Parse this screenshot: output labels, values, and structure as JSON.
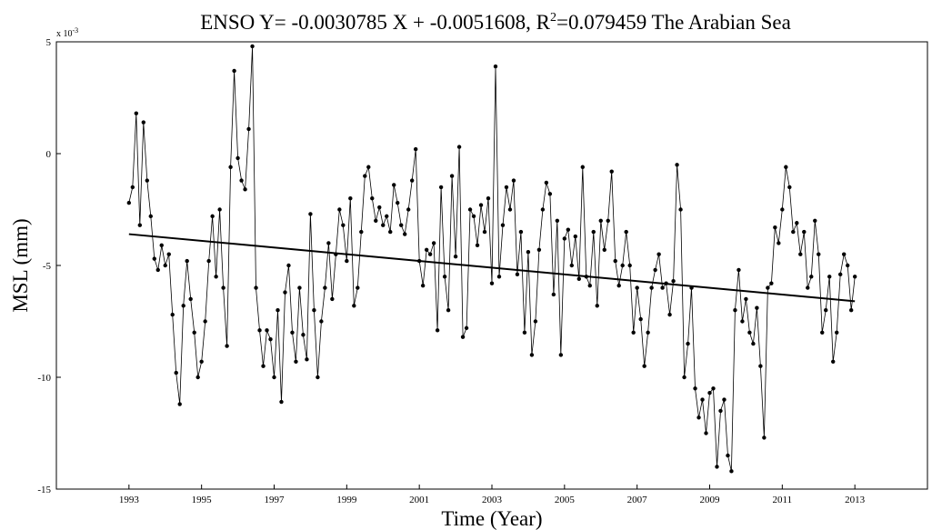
{
  "chart_data": {
    "type": "line",
    "title": "ENSO Y= -0.0030785 X + -0.0051608, R",
    "title_sup": "2",
    "title_suffix": "=0.079459 The Arabian Sea",
    "xlabel": "Time (Year)",
    "ylabel": "MSL (mm)",
    "y_multiplier": "x 10",
    "y_multiplier_exp": "-3",
    "xlim": [
      1991,
      2015
    ],
    "ylim": [
      -15,
      5
    ],
    "xticks": [
      1993,
      1995,
      1997,
      1999,
      2001,
      2003,
      2005,
      2007,
      2009,
      2011,
      2013
    ],
    "yticks": [
      -15,
      -10,
      -5,
      0,
      5
    ],
    "grid": false,
    "series": [
      {
        "style": "line-with-dot-markers",
        "color": "#000000",
        "x": [
          1993.0,
          1993.1,
          1993.2,
          1993.3,
          1993.4,
          1993.5,
          1993.6,
          1993.7,
          1993.8,
          1993.9,
          1994.0,
          1994.1,
          1994.2,
          1994.3,
          1994.4,
          1994.5,
          1994.6,
          1994.7,
          1994.8,
          1994.9,
          1995.0,
          1995.1,
          1995.2,
          1995.3,
          1995.4,
          1995.5,
          1995.6,
          1995.7,
          1995.8,
          1995.9,
          1996.0,
          1996.1,
          1996.2,
          1996.3,
          1996.4,
          1996.5,
          1996.6,
          1996.7,
          1996.8,
          1996.9,
          1997.0,
          1997.1,
          1997.2,
          1997.3,
          1997.4,
          1997.5,
          1997.6,
          1997.7,
          1997.8,
          1997.9,
          1998.0,
          1998.1,
          1998.2,
          1998.3,
          1998.4,
          1998.5,
          1998.6,
          1998.7,
          1998.8,
          1998.9,
          1999.0,
          1999.1,
          1999.2,
          1999.3,
          1999.4,
          1999.5,
          1999.6,
          1999.7,
          1999.8,
          1999.9,
          2000.0,
          2000.1,
          2000.2,
          2000.3,
          2000.4,
          2000.5,
          2000.6,
          2000.7,
          2000.8,
          2000.9,
          2001.0,
          2001.1,
          2001.2,
          2001.3,
          2001.4,
          2001.5,
          2001.6,
          2001.7,
          2001.8,
          2001.9,
          2002.0,
          2002.1,
          2002.2,
          2002.3,
          2002.4,
          2002.5,
          2002.6,
          2002.7,
          2002.8,
          2002.9,
          2003.0,
          2003.1,
          2003.2,
          2003.3,
          2003.4,
          2003.5,
          2003.6,
          2003.7,
          2003.8,
          2003.9,
          2004.0,
          2004.1,
          2004.2,
          2004.3,
          2004.4,
          2004.5,
          2004.6,
          2004.7,
          2004.8,
          2004.9,
          2005.0,
          2005.1,
          2005.2,
          2005.3,
          2005.4,
          2005.5,
          2005.6,
          2005.7,
          2005.8,
          2005.9,
          2006.0,
          2006.1,
          2006.2,
          2006.3,
          2006.4,
          2006.5,
          2006.6,
          2006.7,
          2006.8,
          2006.9,
          2007.0,
          2007.1,
          2007.2,
          2007.3,
          2007.4,
          2007.5,
          2007.6,
          2007.7,
          2007.8,
          2007.9,
          2008.0,
          2008.1,
          2008.2,
          2008.3,
          2008.4,
          2008.5,
          2008.6,
          2008.7,
          2008.8,
          2008.9,
          2009.0,
          2009.1,
          2009.2,
          2009.3,
          2009.4,
          2009.5,
          2009.6,
          2009.7,
          2009.8,
          2009.9,
          2010.0,
          2010.1,
          2010.2,
          2010.3,
          2010.4,
          2010.5,
          2010.6,
          2010.7,
          2010.8,
          2010.9,
          2011.0,
          2011.1,
          2011.2,
          2011.3,
          2011.4,
          2011.5,
          2011.6,
          2011.7,
          2011.8,
          2011.9,
          2012.0,
          2012.1,
          2012.2,
          2012.3,
          2012.4,
          2012.5,
          2012.6,
          2012.7,
          2012.8,
          2012.9,
          2013.0
        ],
        "y": [
          -2.2,
          -1.5,
          1.8,
          -3.2,
          1.4,
          -1.2,
          -2.8,
          -4.7,
          -5.2,
          -4.1,
          -5.0,
          -4.5,
          -7.2,
          -9.8,
          -11.2,
          -6.8,
          -4.8,
          -6.5,
          -8.0,
          -10.0,
          -9.3,
          -7.5,
          -4.8,
          -2.8,
          -5.5,
          -2.5,
          -6.0,
          -8.6,
          -0.6,
          3.7,
          -0.2,
          -1.2,
          -1.6,
          1.1,
          4.8,
          -6.0,
          -7.9,
          -9.5,
          -7.9,
          -8.3,
          -10.0,
          -7.0,
          -11.1,
          -6.2,
          -5.0,
          -8.0,
          -9.3,
          -6.0,
          -8.1,
          -9.2,
          -2.7,
          -7.0,
          -10.0,
          -7.5,
          -6.0,
          -4.0,
          -6.5,
          -4.5,
          -2.5,
          -3.2,
          -4.8,
          -2.0,
          -6.8,
          -6.0,
          -3.5,
          -1.0,
          -0.6,
          -2.0,
          -3.0,
          -2.4,
          -3.2,
          -2.8,
          -3.5,
          -1.4,
          -2.2,
          -3.2,
          -3.6,
          -2.5,
          -1.2,
          0.2,
          -4.8,
          -5.9,
          -4.3,
          -4.5,
          -4.0,
          -7.9,
          -1.5,
          -5.5,
          -7.0,
          -1.0,
          -4.6,
          0.3,
          -8.2,
          -7.8,
          -2.5,
          -2.8,
          -4.1,
          -2.3,
          -3.5,
          -2.0,
          -5.8,
          3.9,
          -5.5,
          -3.2,
          -1.5,
          -2.5,
          -1.2,
          -5.4,
          -3.5,
          -8.0,
          -4.4,
          -9.0,
          -7.5,
          -4.3,
          -2.5,
          -1.3,
          -1.8,
          -6.3,
          -3.0,
          -9.0,
          -3.8,
          -3.4,
          -5.0,
          -3.7,
          -5.6,
          -0.6,
          -5.5,
          -5.9,
          -3.5,
          -6.8,
          -3.0,
          -4.3,
          -3.0,
          -0.8,
          -4.8,
          -5.9,
          -5.0,
          -3.5,
          -5.0,
          -8.0,
          -6.0,
          -7.4,
          -9.5,
          -8.0,
          -6.0,
          -5.2,
          -4.5,
          -6.0,
          -5.8,
          -7.2,
          -5.7,
          -0.5,
          -2.5,
          -10.0,
          -8.5,
          -6.0,
          -10.5,
          -11.8,
          -11.0,
          -12.5,
          -10.7,
          -10.5,
          -14.0,
          -11.5,
          -11.0,
          -13.5,
          -14.2,
          -7.0,
          -5.2,
          -7.5,
          -6.5,
          -8.0,
          -8.5,
          -6.9,
          -9.5,
          -12.7,
          -6.0,
          -5.8,
          -3.3,
          -4.0,
          -2.5,
          -0.6,
          -1.5,
          -3.5,
          -3.1,
          -4.5,
          -3.5,
          -6.0,
          -5.5,
          -3.0,
          -4.5,
          -8.0,
          -7.0,
          -5.5,
          -9.3,
          -8.0,
          -5.4,
          -4.5,
          -5.0,
          -7.0,
          -5.5
        ]
      },
      {
        "name": "",
        "style": "trend-line",
        "color": "#000000",
        "x": [
          1993,
          2013
        ],
        "y": [
          -3.6,
          -6.6
        ]
      }
    ]
  }
}
